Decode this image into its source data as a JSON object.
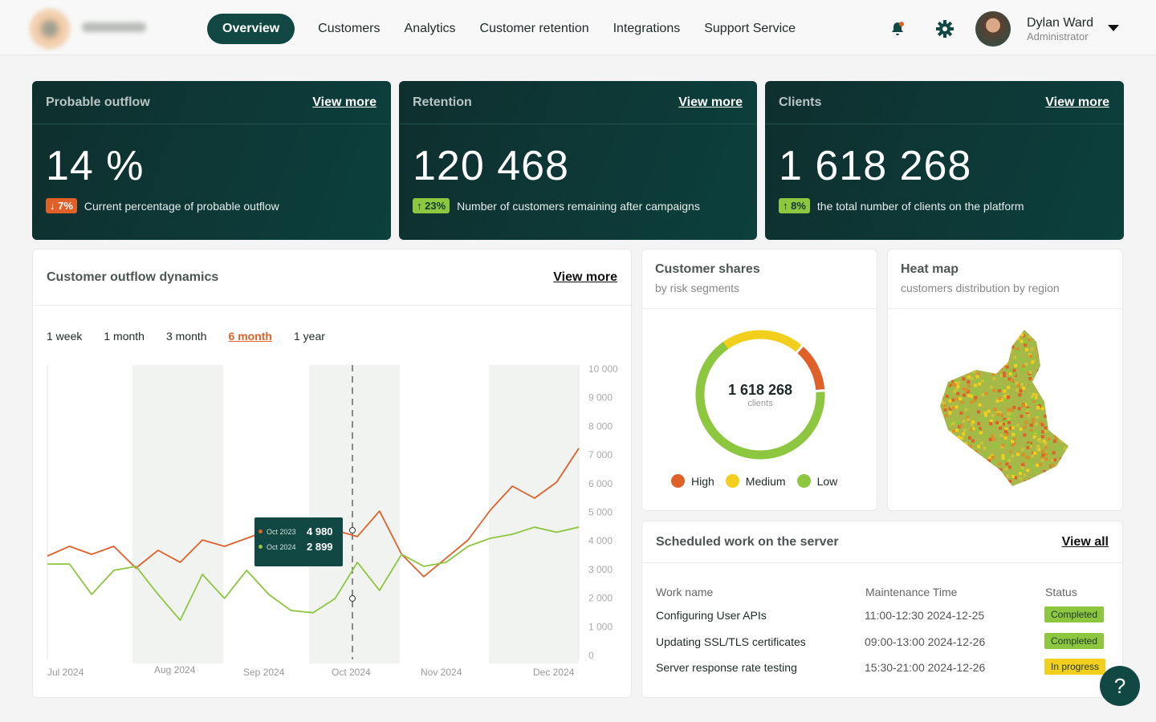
{
  "nav": {
    "items": [
      "Overview",
      "Customers",
      "Analytics",
      "Customer retention",
      "Integrations",
      "Support Service"
    ],
    "active": 0
  },
  "user": {
    "name": "Dylan Ward",
    "role": "Administrator"
  },
  "kpis": [
    {
      "title": "Probable outflow",
      "link": "View more",
      "value": "14 %",
      "badge": "↓ 7%",
      "badge_type": "down",
      "desc": "Current percentage of probable outflow"
    },
    {
      "title": "Retention",
      "link": "View more",
      "value": "120 468",
      "badge": "↑ 23%",
      "badge_type": "up",
      "desc": "Number of customers remaining after campaigns"
    },
    {
      "title": "Clients",
      "link": "View more",
      "value": "1 618 268",
      "badge": "↑ 8%",
      "badge_type": "up",
      "desc": "the total number of clients on the platform"
    }
  ],
  "outflow": {
    "title": "Customer outflow dynamics",
    "link": "View more",
    "periods": [
      "1 week",
      "1 month",
      "3 month",
      "6 month",
      "1 year"
    ],
    "active_period": "6 month",
    "tooltip": {
      "rows": [
        {
          "label": "Oct 2023",
          "value": "4 980",
          "color": "#e0602a"
        },
        {
          "label": "Oct 2024",
          "value": "2 899",
          "color": "#8dc63f"
        }
      ]
    }
  },
  "chart_data": {
    "type": "line",
    "x_ticks": [
      "Jul 2024",
      "Aug 2024",
      "Sep 2024",
      "Oct 2024",
      "Nov 2024",
      "Dec 2024"
    ],
    "y_ticks": [
      "10 000",
      "9 000",
      "8 000",
      "7 000",
      "6 000",
      "5 000",
      "4 000",
      "3 000",
      "2 000",
      "1 000",
      "0"
    ],
    "ylim": [
      0,
      10000
    ],
    "series": [
      {
        "name": "Oct 2023",
        "color": "#e0602a",
        "values": [
          3470,
          3810,
          3530,
          3810,
          3050,
          3670,
          3250,
          4030,
          3810,
          4090,
          4370,
          4730,
          4510,
          4370,
          4150,
          5040,
          3530,
          2750,
          3390,
          4030,
          5070,
          5910,
          5490,
          6050,
          7230
        ]
      },
      {
        "name": "Oct 2024",
        "color": "#8dc63f",
        "values": [
          3190,
          3190,
          2130,
          2970,
          3110,
          2130,
          1230,
          2830,
          1990,
          2970,
          2130,
          1570,
          1490,
          1990,
          3250,
          2270,
          3530,
          3110,
          3250,
          3810,
          4090,
          4230,
          4480,
          4300,
          4480
        ]
      }
    ]
  },
  "shares": {
    "title": "Customer shares",
    "subtitle": "by risk segments",
    "total": "1 618 268",
    "unit": "clients",
    "segments": [
      {
        "label": "High",
        "share": 12,
        "color": "#e0602a"
      },
      {
        "label": "Medium",
        "share": 22,
        "color": "#f2cf1d"
      },
      {
        "label": "Low",
        "share": 66,
        "color": "#8dc63f"
      }
    ]
  },
  "heatmap": {
    "title": "Heat map",
    "subtitle": "customers distribution by region"
  },
  "server": {
    "title": "Scheduled work on the server",
    "link": "View all",
    "headers": [
      "Work name",
      "Maintenance Time",
      "Status"
    ],
    "rows": [
      {
        "name": "Configuring User APIs",
        "time": "11:00-12:30 2024-12-25",
        "status": "Completed",
        "color": "#8dc63f"
      },
      {
        "name": "Updating SSL/TLS certificates",
        "time": "09:00-13:00 2024-12-26",
        "status": "Completed",
        "color": "#8dc63f"
      },
      {
        "name": "Server response rate testing",
        "time": "15:30-21:00 2024-12-26",
        "status": "In progress",
        "color": "#f2cf1d"
      }
    ]
  },
  "help": "?"
}
